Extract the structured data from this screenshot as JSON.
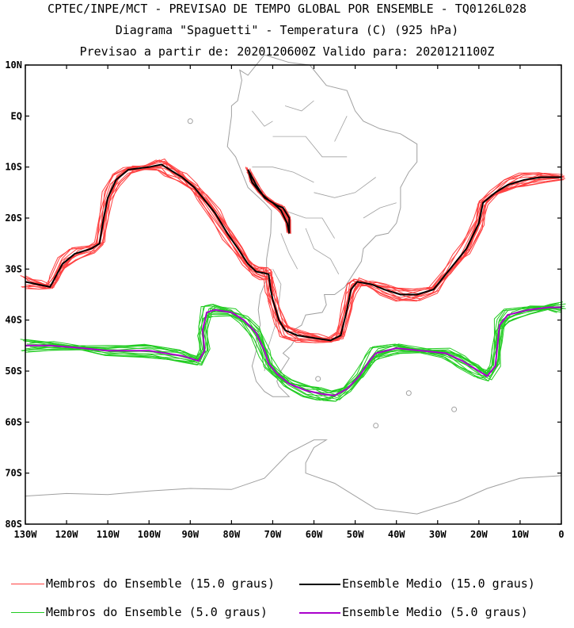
{
  "title": {
    "line1": "CPTEC/INPE/MCT - PREVISAO DE TEMPO GLOBAL POR ENSEMBLE - TQ0126L028",
    "line2": "Diagrama \"Spaguetti\" - Temperatura (C) (925 hPa)",
    "line3": "Previsao a partir de: 2020120600Z  Valido para: 2020121100Z"
  },
  "axes": {
    "lat_labels": [
      "10N",
      "EQ",
      "10S",
      "20S",
      "30S",
      "40S",
      "50S",
      "60S",
      "70S",
      "80S"
    ],
    "lat_values": [
      10,
      0,
      -10,
      -20,
      -30,
      -40,
      -50,
      -60,
      -70,
      -80
    ],
    "lon_labels": [
      "130W",
      "120W",
      "110W",
      "100W",
      "90W",
      "80W",
      "70W",
      "60W",
      "50W",
      "40W",
      "30W",
      "20W",
      "10W",
      "0"
    ],
    "lon_values": [
      -130,
      -120,
      -110,
      -100,
      -90,
      -80,
      -70,
      -60,
      -50,
      -40,
      -30,
      -20,
      -10,
      0
    ],
    "lon_range": [
      -130,
      0
    ],
    "lat_range": [
      -80,
      10
    ]
  },
  "colors": {
    "member_15": "#ff4040",
    "mean_15": "#000000",
    "member_5": "#22cc22",
    "mean_5": "#aa00cc",
    "land": "#a0a0a0"
  },
  "legend": [
    {
      "label": "Membros do Ensemble (15.0 graus)",
      "color": "#ff4040"
    },
    {
      "label": "Ensemble Medio (15.0 graus)",
      "color": "#000000"
    },
    {
      "label": "Membros do Ensemble (5.0 graus)",
      "color": "#22cc22"
    },
    {
      "label": "Ensemble Medio (5.0 graus)",
      "color": "#aa00cc"
    }
  ],
  "contours": {
    "mean_15_main": [
      [
        -130,
        -32.5
      ],
      [
        -127,
        -33
      ],
      [
        -124,
        -33.5
      ],
      [
        -123,
        -32
      ],
      [
        -121,
        -29
      ],
      [
        -118,
        -27
      ],
      [
        -114,
        -26
      ],
      [
        -112,
        -25
      ],
      [
        -111,
        -20
      ],
      [
        -110,
        -16
      ],
      [
        -108,
        -12.5
      ],
      [
        -105,
        -10.5
      ],
      [
        -100,
        -10
      ],
      [
        -97,
        -9.5
      ],
      [
        -95,
        -10.5
      ],
      [
        -92,
        -12
      ],
      [
        -89,
        -14
      ],
      [
        -87,
        -16
      ],
      [
        -84,
        -19
      ],
      [
        -81,
        -23
      ],
      [
        -78,
        -26.5
      ],
      [
        -76,
        -29
      ],
      [
        -74,
        -30.5
      ],
      [
        -72,
        -30.8
      ],
      [
        -71,
        -31
      ],
      [
        -70.5,
        -34
      ],
      [
        -70,
        -36
      ],
      [
        -68.5,
        -40
      ],
      [
        -67,
        -42
      ],
      [
        -64,
        -43
      ],
      [
        -60,
        -43.5
      ],
      [
        -56,
        -44
      ],
      [
        -53.5,
        -43
      ],
      [
        -52,
        -38
      ],
      [
        -51,
        -34
      ],
      [
        -49.5,
        -32.5
      ],
      [
        -46,
        -33
      ],
      [
        -43,
        -34
      ],
      [
        -39,
        -35
      ],
      [
        -35,
        -35
      ],
      [
        -31,
        -34
      ],
      [
        -28,
        -31
      ],
      [
        -25,
        -28
      ],
      [
        -23,
        -26
      ],
      [
        -20,
        -21
      ],
      [
        -19,
        -17
      ],
      [
        -16,
        -15
      ],
      [
        -13,
        -13.5
      ],
      [
        -9,
        -12.5
      ],
      [
        -5,
        -12
      ],
      [
        0,
        -12
      ]
    ],
    "mean_15_andes": [
      [
        -76,
        -10.5
      ],
      [
        -75,
        -13
      ],
      [
        -73,
        -15
      ],
      [
        -71,
        -16.5
      ],
      [
        -69,
        -17.5
      ],
      [
        -67.5,
        -18
      ],
      [
        -66,
        -20
      ],
      [
        -66,
        -23
      ],
      [
        -66.5,
        -21
      ],
      [
        -68,
        -18.5
      ],
      [
        -70,
        -17
      ],
      [
        -72,
        -16
      ],
      [
        -74,
        -13.5
      ],
      [
        -76,
        -10.5
      ]
    ],
    "mean_5": [
      [
        -130,
        -45
      ],
      [
        -124,
        -45
      ],
      [
        -116,
        -45.5
      ],
      [
        -110,
        -46
      ],
      [
        -100,
        -46
      ],
      [
        -92,
        -47
      ],
      [
        -88,
        -48
      ],
      [
        -86.5,
        -46
      ],
      [
        -87,
        -42
      ],
      [
        -86,
        -38.5
      ],
      [
        -84,
        -38
      ],
      [
        -80,
        -38.5
      ],
      [
        -77,
        -40
      ],
      [
        -74,
        -42.5
      ],
      [
        -72,
        -46
      ],
      [
        -71,
        -48.5
      ],
      [
        -69,
        -50.5
      ],
      [
        -66,
        -52.5
      ],
      [
        -62,
        -53.8
      ],
      [
        -58,
        -54.5
      ],
      [
        -55,
        -54.8
      ],
      [
        -52,
        -53.5
      ],
      [
        -49,
        -51
      ],
      [
        -46.5,
        -48
      ],
      [
        -45,
        -46.5
      ],
      [
        -40,
        -45.5
      ],
      [
        -34,
        -46
      ],
      [
        -28,
        -46.5
      ],
      [
        -24,
        -48
      ],
      [
        -20,
        -50
      ],
      [
        -18,
        -51
      ],
      [
        -16,
        -49
      ],
      [
        -15.5,
        -45
      ],
      [
        -15,
        -41
      ],
      [
        -13,
        -39
      ],
      [
        -8,
        -38
      ],
      [
        -3,
        -37.5
      ],
      [
        0,
        -37.5
      ]
    ]
  },
  "coastline_labels": []
}
